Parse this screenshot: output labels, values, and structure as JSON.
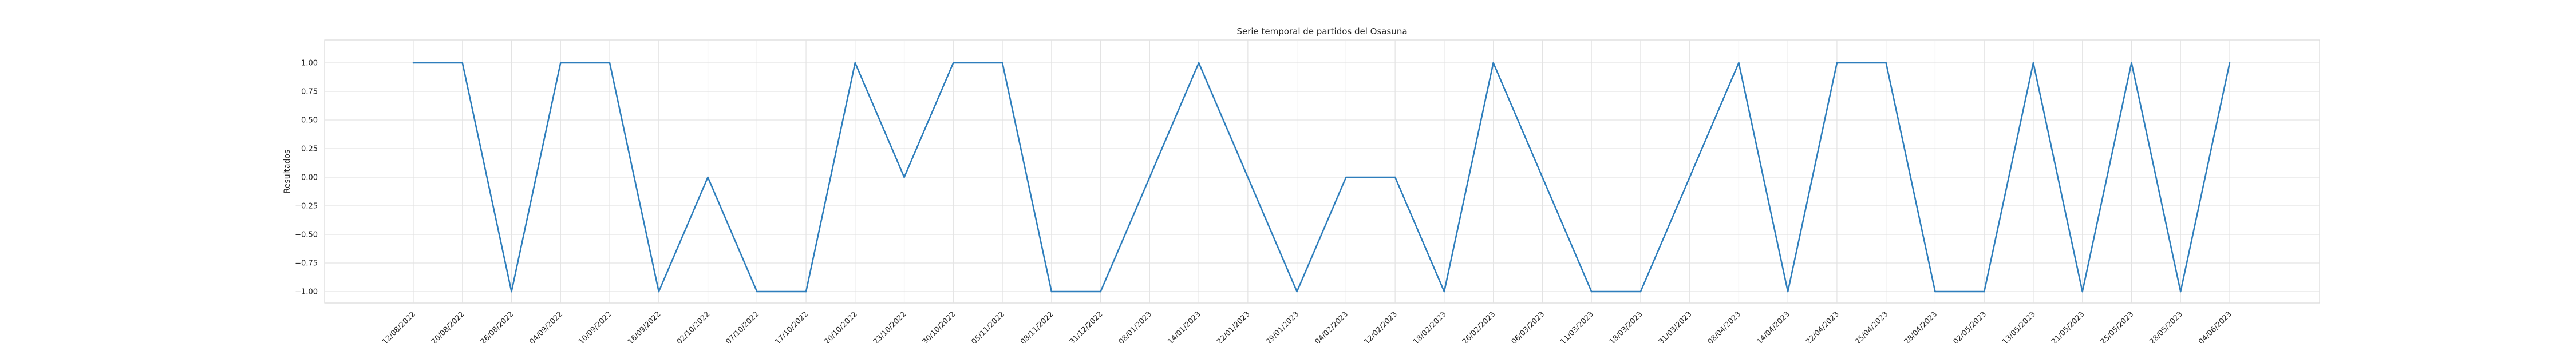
{
  "chart_data": {
    "type": "line",
    "title": "Serie temporal de partidos del Osasuna",
    "xlabel": "",
    "ylabel": "Resultados",
    "ylim": [
      -1.1,
      1.2
    ],
    "yticks": [
      -1.0,
      -0.75,
      -0.5,
      -0.25,
      0.0,
      0.25,
      0.5,
      0.75,
      1.0
    ],
    "ytick_labels": [
      "−1.00",
      "−0.75",
      "−0.50",
      "−0.25",
      "0.00",
      "0.25",
      "0.50",
      "0.75",
      "1.00"
    ],
    "grid": true,
    "line_color": "#2e7ebc",
    "categories": [
      "12/08/2022",
      "20/08/2022",
      "26/08/2022",
      "04/09/2022",
      "10/09/2022",
      "16/09/2022",
      "02/10/2022",
      "07/10/2022",
      "17/10/2022",
      "20/10/2022",
      "23/10/2022",
      "30/10/2022",
      "05/11/2022",
      "08/11/2022",
      "31/12/2022",
      "08/01/2023",
      "14/01/2023",
      "22/01/2023",
      "29/01/2023",
      "04/02/2023",
      "12/02/2023",
      "18/02/2023",
      "26/02/2023",
      "06/03/2023",
      "11/03/2023",
      "18/03/2023",
      "31/03/2023",
      "08/04/2023",
      "14/04/2023",
      "22/04/2023",
      "25/04/2023",
      "28/04/2023",
      "02/05/2023",
      "13/05/2023",
      "21/05/2023",
      "25/05/2023",
      "28/05/2023",
      "04/06/2023"
    ],
    "series": [
      {
        "values": [
          1,
          1,
          -1,
          1,
          1,
          -1,
          0,
          -1,
          -1,
          1,
          0,
          1,
          1,
          -1,
          -1,
          0,
          1,
          0,
          -1,
          0,
          0,
          -1,
          1,
          0,
          -1,
          -1,
          0,
          1,
          -1,
          1,
          1,
          -1,
          -1,
          1,
          -1,
          1,
          -1,
          1
        ]
      }
    ]
  }
}
